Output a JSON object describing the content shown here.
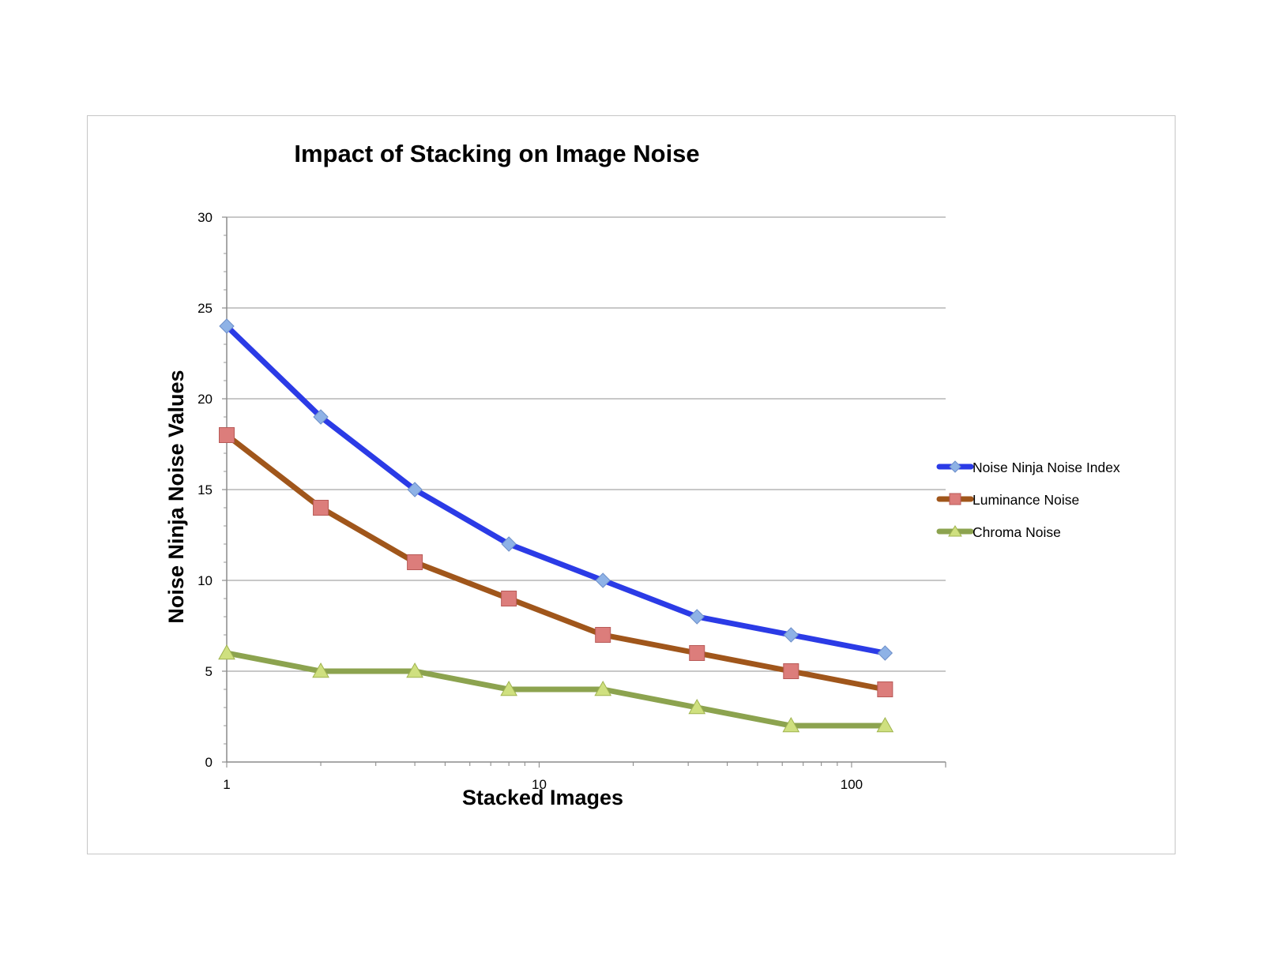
{
  "chart_data": {
    "type": "line",
    "title": "Impact of Stacking on Image Noise",
    "xlabel": "Stacked Images",
    "ylabel": "Noise Ninja Noise Values",
    "x_scale": "log",
    "xlim": [
      1,
      200
    ],
    "ylim": [
      0,
      30
    ],
    "x_ticks": [
      1,
      10,
      100
    ],
    "y_ticks": [
      0,
      5,
      10,
      15,
      20,
      25,
      30
    ],
    "grid": "horizontal",
    "legend_position": "right",
    "x": [
      1,
      2,
      4,
      8,
      16,
      32,
      64,
      128
    ],
    "series": [
      {
        "name": "Noise Ninja Noise Index",
        "color": "#2b3be6",
        "marker": "diamond",
        "marker_color": "#8eb2e6",
        "values": [
          24,
          19,
          15,
          12,
          10,
          8,
          7,
          6
        ]
      },
      {
        "name": "Luminance Noise",
        "color": "#a0561b",
        "marker": "square",
        "marker_color": "#dc7d7b",
        "values": [
          18,
          14,
          11,
          9,
          7,
          6,
          5,
          4
        ]
      },
      {
        "name": "Chroma Noise",
        "color": "#8ca34f",
        "marker": "triangle",
        "marker_color": "#cfe07f",
        "values": [
          6,
          5,
          5,
          4,
          4,
          3,
          2,
          2
        ]
      }
    ]
  }
}
